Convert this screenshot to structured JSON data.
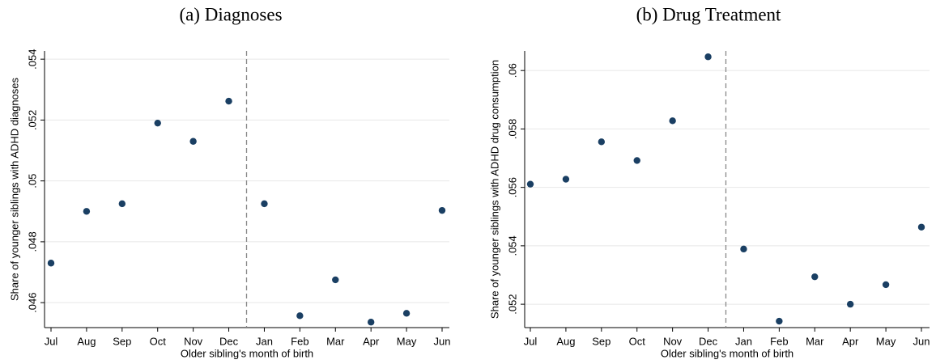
{
  "chart_data": [
    {
      "type": "scatter",
      "title": "(a) Diagnoses",
      "x_label": "Older sibling's month of birth",
      "y_label": "Share of younger siblings with ADHD diagnoses",
      "categories": [
        "Jul",
        "Aug",
        "Sep",
        "Oct",
        "Nov",
        "Dec",
        "Jan",
        "Feb",
        "Mar",
        "Apr",
        "May",
        "Jun"
      ],
      "values": [
        0.0473,
        0.049,
        0.04925,
        0.0519,
        0.0513,
        0.05262,
        0.04925,
        0.04557,
        0.04675,
        0.04536,
        0.04565,
        0.04903
      ],
      "color": "#1a3f63",
      "ylim": [
        0.04518,
        0.05427
      ],
      "yticks": [
        {
          "value": 0.046,
          "label": ".046"
        },
        {
          "value": 0.048,
          "label": ".048"
        },
        {
          "value": 0.05,
          "label": ".05"
        },
        {
          "value": 0.052,
          "label": ".052"
        },
        {
          "value": 0.054,
          "label": ".054"
        }
      ],
      "grid": true
    },
    {
      "type": "scatter",
      "title": "(b) Drug Treatment",
      "x_label": "Older sibling's month of birth",
      "y_label": "Share of younger siblings with ADHD drug consumption",
      "categories": [
        "Jul",
        "Aug",
        "Sep",
        "Oct",
        "Nov",
        "Dec",
        "Jan",
        "Feb",
        "Mar",
        "Apr",
        "May",
        "Jun"
      ],
      "values": [
        0.05611,
        0.05628,
        0.05756,
        0.05692,
        0.05828,
        0.06047,
        0.05389,
        0.05142,
        0.05294,
        0.052,
        0.05267,
        0.05464
      ],
      "color": "#1a3f63",
      "ylim": [
        0.0512,
        0.06067
      ],
      "yticks": [
        {
          "value": 0.052,
          "label": ".052"
        },
        {
          "value": 0.054,
          "label": ".054"
        },
        {
          "value": 0.056,
          "label": ".056"
        },
        {
          "value": 0.058,
          "label": ".058"
        },
        {
          "value": 0.06,
          "label": ".06"
        }
      ],
      "grid": true
    }
  ]
}
